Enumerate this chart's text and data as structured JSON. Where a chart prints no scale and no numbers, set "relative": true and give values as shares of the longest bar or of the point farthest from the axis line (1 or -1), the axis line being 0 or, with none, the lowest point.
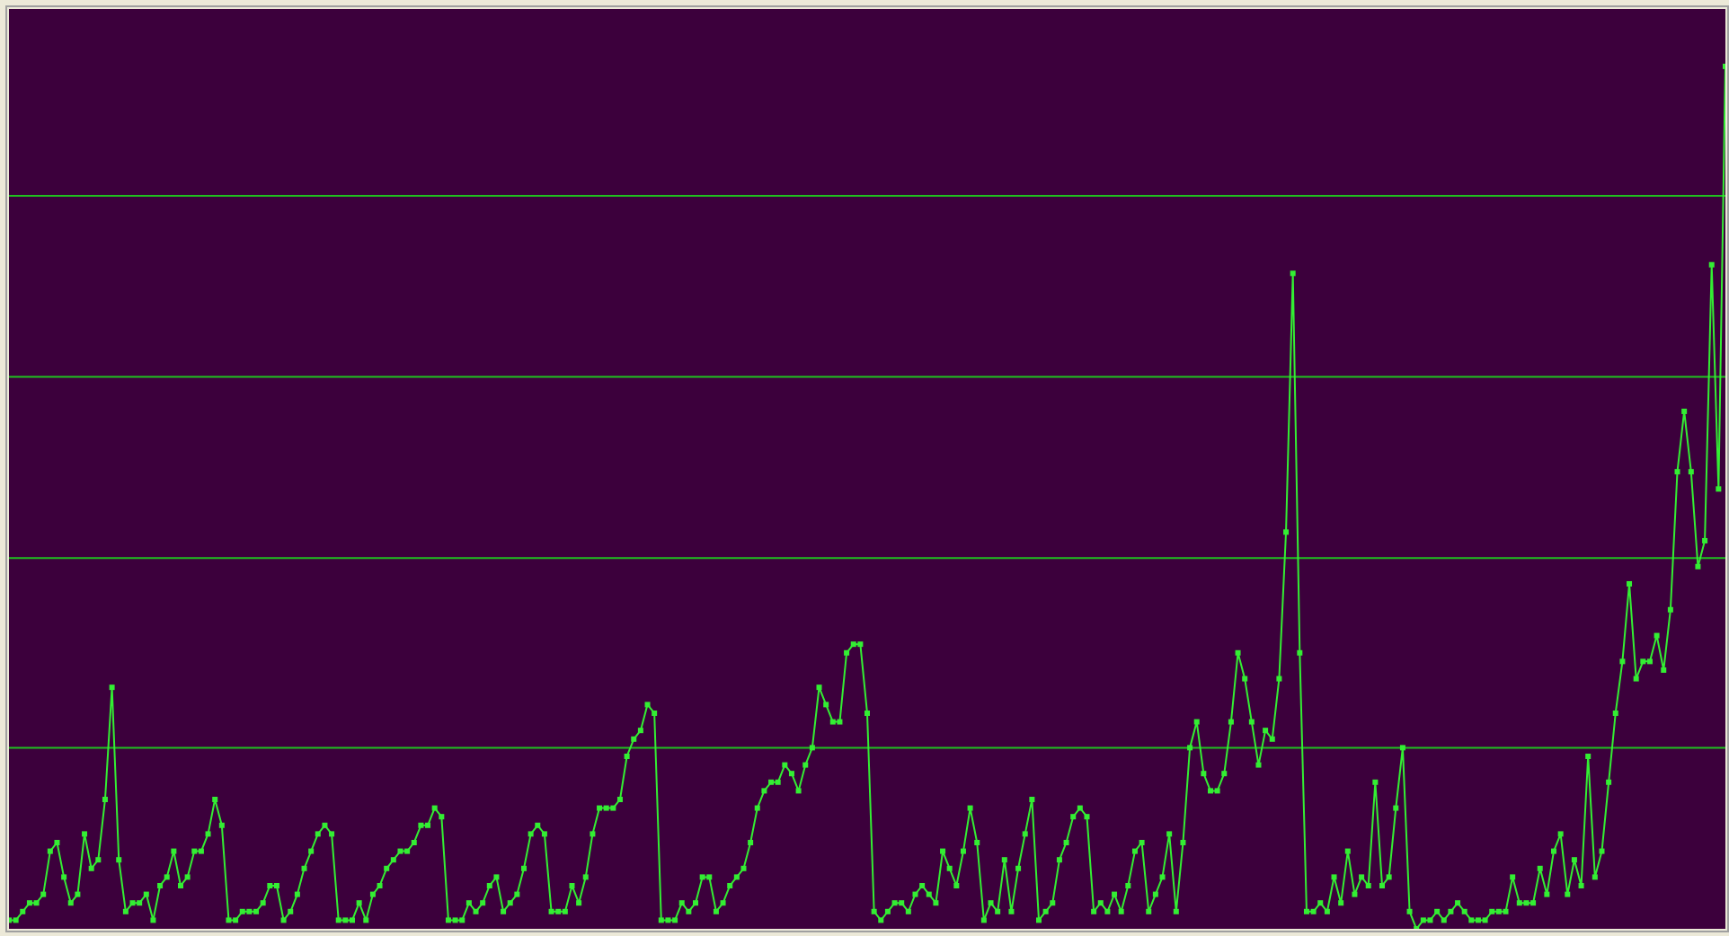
{
  "chart_data": {
    "type": "line",
    "relative": true,
    "ref_lines": [
      {
        "axis": "y",
        "value": 0.21,
        "color": "#20c020"
      },
      {
        "axis": "y",
        "value": 0.43,
        "color": "#20c020"
      },
      {
        "axis": "y",
        "value": 0.64,
        "color": "#20c020"
      },
      {
        "axis": "y",
        "value": 0.85,
        "color": "#20c020"
      }
    ],
    "marker": "square",
    "line_style": "solid",
    "categories": [
      null,
      null,
      null,
      null,
      null,
      null,
      null,
      null,
      null,
      null,
      null,
      null,
      null,
      null,
      null,
      null,
      null,
      null,
      null,
      null,
      null,
      null,
      null,
      null,
      null,
      null,
      null,
      null,
      null,
      null,
      null,
      null,
      null,
      null,
      null,
      null,
      null,
      null,
      null,
      null,
      null,
      null,
      null,
      null,
      null,
      null,
      null,
      null,
      null,
      null,
      null,
      null,
      null,
      null,
      null,
      null,
      null,
      null,
      null,
      null,
      null,
      null,
      null,
      null,
      null,
      null,
      null,
      null,
      null,
      null,
      null,
      null,
      null,
      null,
      null,
      null,
      null,
      null,
      null,
      null,
      null,
      null,
      null,
      null,
      null,
      null,
      null,
      null,
      null,
      null,
      null,
      null,
      null,
      null,
      null,
      null,
      null,
      null,
      null,
      null,
      null,
      null,
      null,
      null,
      null,
      null,
      null,
      null,
      null,
      null,
      null,
      null,
      null,
      null,
      null,
      null,
      null,
      null,
      null,
      null,
      null,
      null,
      null,
      null,
      null,
      null,
      null,
      null,
      null,
      null,
      null,
      null,
      null,
      null,
      null,
      null,
      null,
      null,
      null,
      null,
      null,
      null,
      null,
      null,
      null,
      null,
      null,
      null,
      null,
      null,
      null,
      null,
      null,
      null,
      null,
      null,
      null,
      null,
      null,
      null,
      null,
      null,
      null,
      null,
      null,
      null,
      null,
      null,
      null,
      null,
      null,
      null,
      null,
      null,
      null,
      null,
      null,
      null,
      null,
      null,
      null,
      null,
      null,
      null,
      null,
      null,
      null,
      null,
      null,
      null,
      null,
      null,
      null,
      null,
      null,
      null,
      null,
      null,
      null,
      null,
      null,
      null,
      null,
      null,
      null,
      null,
      null,
      null,
      null,
      null,
      null,
      null,
      null,
      null,
      null,
      null,
      null,
      null,
      null,
      null,
      null,
      null,
      null,
      null,
      null,
      null,
      null,
      null,
      null,
      null,
      null,
      null,
      null,
      null,
      null,
      null,
      null,
      null,
      null,
      null,
      null,
      null,
      null,
      null,
      null,
      null,
      null,
      null,
      null,
      null,
      null
    ],
    "series": [
      {
        "color": "#33ee33",
        "values": [
          0.01,
          0.01,
          0.02,
          0.03,
          0.03,
          0.04,
          0.09,
          0.1,
          0.06,
          0.03,
          0.04,
          0.11,
          0.07,
          0.08,
          0.15,
          0.28,
          0.08,
          0.02,
          0.03,
          0.03,
          0.04,
          0.01,
          0.05,
          0.06,
          0.09,
          0.05,
          0.06,
          0.09,
          0.09,
          0.11,
          0.15,
          0.12,
          0.01,
          0.01,
          0.02,
          0.02,
          0.02,
          0.03,
          0.05,
          0.05,
          0.01,
          0.02,
          0.04,
          0.07,
          0.09,
          0.11,
          0.12,
          0.11,
          0.01,
          0.01,
          0.01,
          0.03,
          0.01,
          0.04,
          0.05,
          0.07,
          0.08,
          0.09,
          0.09,
          0.1,
          0.12,
          0.12,
          0.14,
          0.13,
          0.01,
          0.01,
          0.01,
          0.03,
          0.02,
          0.03,
          0.05,
          0.06,
          0.02,
          0.03,
          0.04,
          0.07,
          0.11,
          0.12,
          0.11,
          0.02,
          0.02,
          0.02,
          0.05,
          0.03,
          0.06,
          0.11,
          0.14,
          0.14,
          0.14,
          0.15,
          0.2,
          0.22,
          0.23,
          0.26,
          0.25,
          0.01,
          0.01,
          0.01,
          0.03,
          0.02,
          0.03,
          0.06,
          0.06,
          0.02,
          0.03,
          0.05,
          0.06,
          0.07,
          0.1,
          0.14,
          0.16,
          0.17,
          0.17,
          0.19,
          0.18,
          0.16,
          0.19,
          0.21,
          0.28,
          0.26,
          0.24,
          0.24,
          0.32,
          0.33,
          0.33,
          0.25,
          0.02,
          0.01,
          0.02,
          0.03,
          0.03,
          0.02,
          0.04,
          0.05,
          0.04,
          0.03,
          0.09,
          0.07,
          0.05,
          0.09,
          0.14,
          0.1,
          0.01,
          0.03,
          0.02,
          0.08,
          0.02,
          0.07,
          0.11,
          0.15,
          0.01,
          0.02,
          0.03,
          0.08,
          0.1,
          0.13,
          0.14,
          0.13,
          0.02,
          0.03,
          0.02,
          0.04,
          0.02,
          0.05,
          0.09,
          0.1,
          0.02,
          0.04,
          0.06,
          0.11,
          0.02,
          0.1,
          0.21,
          0.24,
          0.18,
          0.16,
          0.16,
          0.18,
          0.24,
          0.32,
          0.29,
          0.24,
          0.19,
          0.23,
          0.22,
          0.29,
          0.46,
          0.76,
          0.32,
          0.02,
          0.02,
          0.03,
          0.02,
          0.06,
          0.03,
          0.09,
          0.04,
          0.06,
          0.05,
          0.17,
          0.05,
          0.06,
          0.14,
          0.21,
          0.02,
          0,
          0.01,
          0.01,
          0.02,
          0.01,
          0.02,
          0.03,
          0.02,
          0.01,
          0.01,
          0.01,
          0.02,
          0.02,
          0.02,
          0.06,
          0.03,
          0.03,
          0.03,
          0.07,
          0.04,
          0.09,
          0.11,
          0.04,
          0.08,
          0.05,
          0.2,
          0.06,
          0.09,
          0.17,
          0.25,
          0.31,
          0.4,
          0.29,
          0.31,
          0.31,
          0.34,
          0.3,
          0.37,
          0.53,
          0.6,
          0.53,
          0.42,
          0.45,
          0.77,
          0.51,
          1
        ]
      }
    ]
  }
}
